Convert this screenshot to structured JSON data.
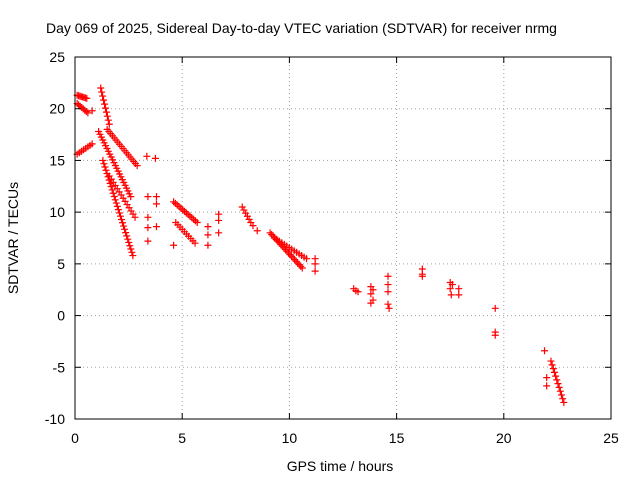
{
  "chart_data": {
    "type": "scatter",
    "title": "Day 069 of 2025, Sidereal Day-to-day VTEC variation (SDTVAR) for receiver nrmg",
    "xlabel": "GPS time / hours",
    "ylabel": "SDTVAR / TECUs",
    "xlim": [
      0,
      25
    ],
    "ylim": [
      -10,
      25
    ],
    "xticks": [
      0,
      5,
      10,
      15,
      20,
      25
    ],
    "yticks": [
      -10,
      -5,
      0,
      5,
      10,
      15,
      20,
      25
    ],
    "grid": true,
    "marker": "plus",
    "series": [
      {
        "name": "SDTVAR",
        "color": "#ff0000",
        "segments": [
          {
            "x0": 0.1,
            "y0": 21.3,
            "x1": 0.55,
            "y1": 21.0,
            "n": 8
          },
          {
            "x0": 0.1,
            "y0": 20.5,
            "x1": 0.6,
            "y1": 19.6,
            "n": 8
          },
          {
            "x0": 0.1,
            "y0": 15.6,
            "x1": 0.8,
            "y1": 16.6,
            "n": 8
          },
          {
            "x0": 1.2,
            "y0": 22.0,
            "x1": 1.6,
            "y1": 18.5,
            "n": 10
          },
          {
            "x0": 1.5,
            "y0": 18.0,
            "x1": 2.9,
            "y1": 14.5,
            "n": 18
          },
          {
            "x0": 1.1,
            "y0": 17.8,
            "x1": 2.6,
            "y1": 11.5,
            "n": 24
          },
          {
            "x0": 1.3,
            "y0": 15.0,
            "x1": 2.7,
            "y1": 5.8,
            "n": 30
          },
          {
            "x0": 1.6,
            "y0": 13.5,
            "x1": 2.8,
            "y1": 9.5,
            "n": 14
          },
          {
            "x0": 4.6,
            "y0": 11.0,
            "x1": 5.7,
            "y1": 9.0,
            "n": 14
          },
          {
            "x0": 4.7,
            "y0": 9.0,
            "x1": 5.6,
            "y1": 7.0,
            "n": 10
          },
          {
            "x0": 7.8,
            "y0": 10.5,
            "x1": 8.2,
            "y1": 9.0,
            "n": 6
          },
          {
            "x0": 9.1,
            "y0": 8.0,
            "x1": 10.6,
            "y1": 4.6,
            "n": 22
          },
          {
            "x0": 9.3,
            "y0": 7.5,
            "x1": 10.8,
            "y1": 5.5,
            "n": 14
          },
          {
            "x0": 22.2,
            "y0": -4.4,
            "x1": 22.8,
            "y1": -8.4,
            "n": 12
          }
        ],
        "points": [
          [
            0.8,
            19.8
          ],
          [
            3.35,
            15.4
          ],
          [
            3.75,
            15.2
          ],
          [
            3.4,
            11.5
          ],
          [
            3.4,
            9.5
          ],
          [
            3.4,
            8.5
          ],
          [
            3.4,
            7.2
          ],
          [
            3.8,
            11.5
          ],
          [
            3.8,
            10.8
          ],
          [
            3.8,
            8.6
          ],
          [
            4.6,
            6.8
          ],
          [
            6.2,
            8.6
          ],
          [
            6.2,
            7.8
          ],
          [
            6.2,
            6.8
          ],
          [
            6.7,
            9.8
          ],
          [
            6.7,
            9.2
          ],
          [
            6.7,
            8.0
          ],
          [
            8.3,
            8.7
          ],
          [
            8.5,
            8.2
          ],
          [
            11.2,
            5.5
          ],
          [
            11.2,
            5.0
          ],
          [
            11.2,
            4.3
          ],
          [
            13.0,
            2.6
          ],
          [
            13.1,
            2.4
          ],
          [
            13.2,
            2.3
          ],
          [
            13.8,
            2.8
          ],
          [
            13.8,
            2.1
          ],
          [
            13.8,
            1.2
          ],
          [
            13.9,
            2.5
          ],
          [
            13.9,
            1.5
          ],
          [
            14.6,
            3.8
          ],
          [
            14.6,
            3.0
          ],
          [
            14.6,
            2.3
          ],
          [
            14.6,
            1.1
          ],
          [
            14.65,
            0.7
          ],
          [
            16.2,
            4.5
          ],
          [
            16.2,
            4.0
          ],
          [
            16.2,
            3.8
          ],
          [
            17.5,
            3.2
          ],
          [
            17.5,
            2.6
          ],
          [
            17.55,
            2.0
          ],
          [
            17.6,
            3.0
          ],
          [
            17.9,
            2.6
          ],
          [
            17.9,
            2.0
          ],
          [
            19.6,
            0.7
          ],
          [
            19.6,
            -1.6
          ],
          [
            19.6,
            -1.9
          ],
          [
            21.9,
            -3.4
          ],
          [
            22.0,
            -6.0
          ],
          [
            22.0,
            -6.8
          ]
        ]
      }
    ]
  }
}
